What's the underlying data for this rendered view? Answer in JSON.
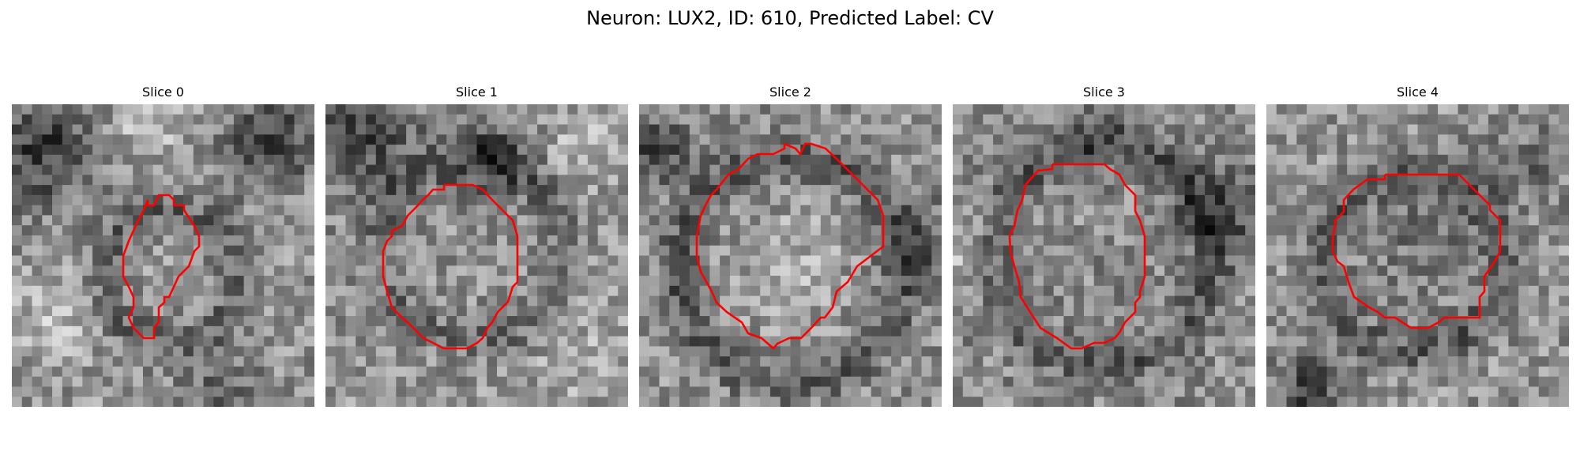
{
  "figure": {
    "title": "Neuron: LUX2, ID: 610, Predicted Label: CV"
  },
  "panels": [
    {
      "title": "Slice 0"
    },
    {
      "title": "Slice 1"
    },
    {
      "title": "Slice 2"
    },
    {
      "title": "Slice 3"
    },
    {
      "title": "Slice 4"
    }
  ],
  "colors": {
    "contour": "#ff0000",
    "background": "#ffffff",
    "colormap": "gray"
  }
}
